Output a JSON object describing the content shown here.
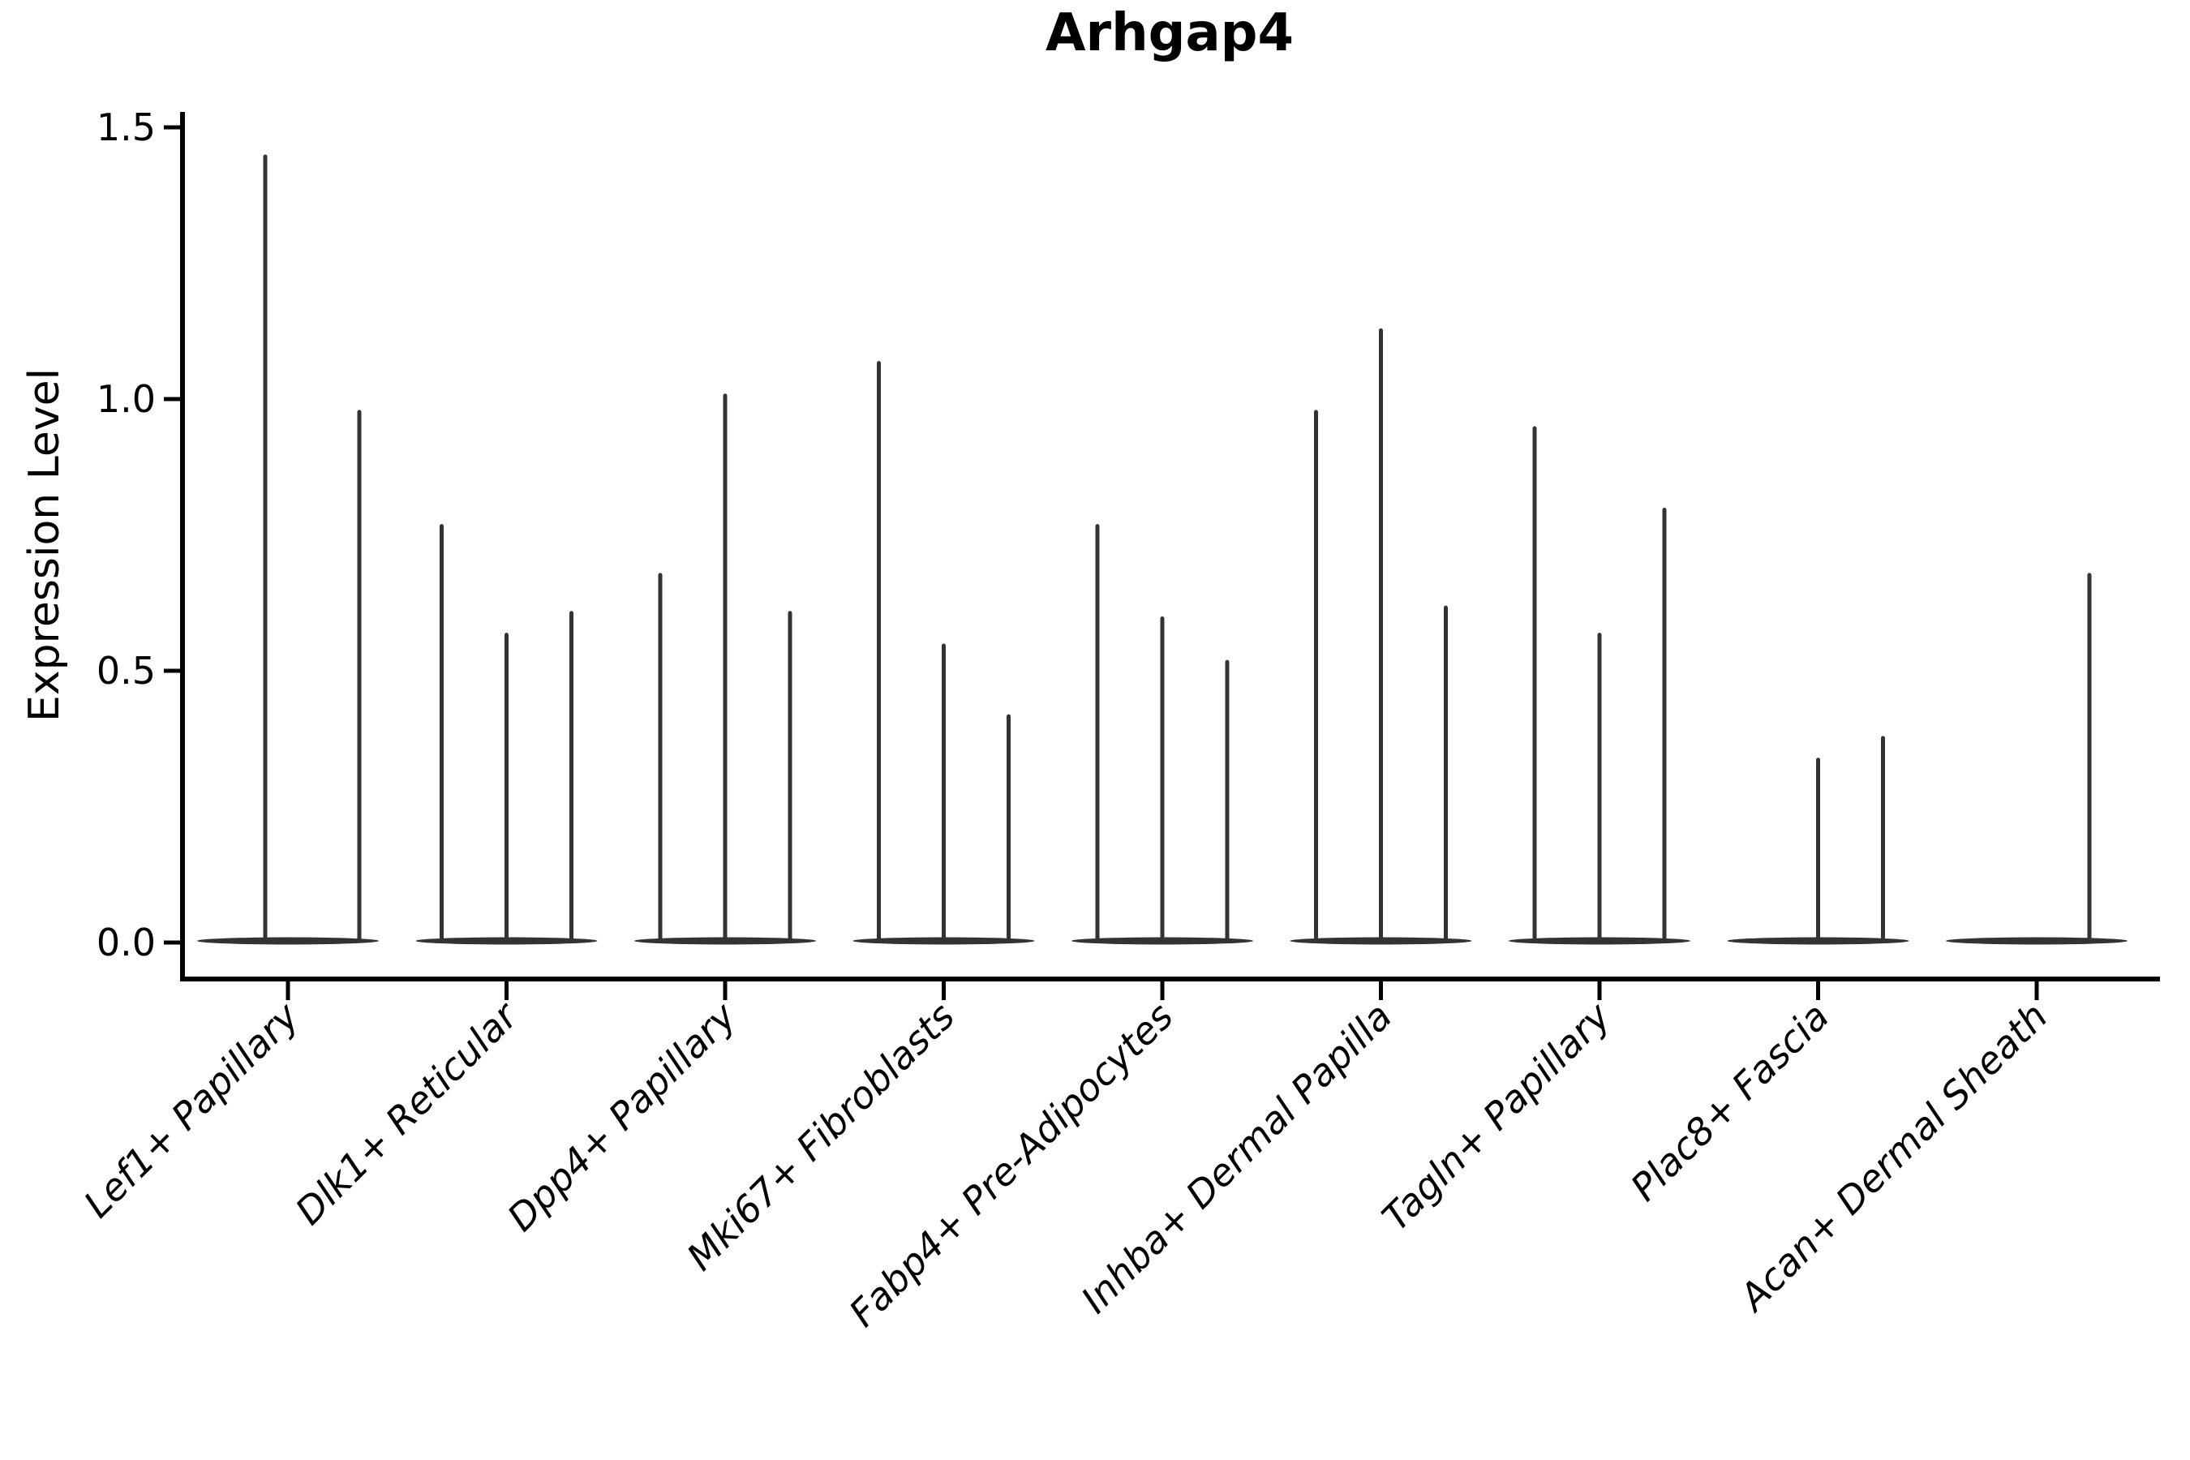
{
  "title": "Arhgap4",
  "axes": {
    "ylabel": "Expression Level",
    "xlabel": ""
  },
  "chart_data": {
    "type": "violin",
    "title": "Arhgap4",
    "ylabel": "Expression Level",
    "xlabel": "",
    "ylim": [
      -0.067,
      1.53
    ],
    "yticks": [
      0.0,
      0.5,
      1.0,
      1.5
    ],
    "grid": false,
    "legend": null,
    "categories": [
      "Lef1+ Papillary",
      "Dlk1+ Reticular",
      "Dpp4+ Papillary",
      "Mki67+ Fibroblasts",
      "Fabp4+ Pre-Adipocytes",
      "Inhba+ Dermal Papilla",
      "Tagln+ Papillary",
      "Plac8+ Fascia",
      "Acan+ Dermal Sheath"
    ],
    "groups": [
      {
        "category": "Lef1+ Papillary",
        "violins": [
          {
            "dx": -28,
            "max": 1.45
          },
          {
            "dx": 88,
            "max": 0.98
          }
        ]
      },
      {
        "category": "Dlk1+ Reticular",
        "violins": [
          {
            "dx": -80,
            "max": 0.77
          },
          {
            "dx": 0,
            "max": 0.57
          },
          {
            "dx": 80,
            "max": 0.61
          }
        ]
      },
      {
        "category": "Dpp4+ Papillary",
        "violins": [
          {
            "dx": -80,
            "max": 0.68
          },
          {
            "dx": 0,
            "max": 1.01
          },
          {
            "dx": 80,
            "max": 0.61
          }
        ]
      },
      {
        "category": "Mki67+ Fibroblasts",
        "violins": [
          {
            "dx": -80,
            "max": 1.07
          },
          {
            "dx": 0,
            "max": 0.55
          },
          {
            "dx": 80,
            "max": 0.42
          }
        ]
      },
      {
        "category": "Fabp4+ Pre-Adipocytes",
        "violins": [
          {
            "dx": -80,
            "max": 0.77
          },
          {
            "dx": 0,
            "max": 0.6
          },
          {
            "dx": 80,
            "max": 0.52
          }
        ]
      },
      {
        "category": "Inhba+ Dermal Papilla",
        "violins": [
          {
            "dx": -80,
            "max": 0.98
          },
          {
            "dx": 0,
            "max": 1.13
          },
          {
            "dx": 80,
            "max": 0.62
          }
        ]
      },
      {
        "category": "Tagln+ Papillary",
        "violins": [
          {
            "dx": -80,
            "max": 0.95
          },
          {
            "dx": 0,
            "max": 0.57
          },
          {
            "dx": 80,
            "max": 0.8
          }
        ]
      },
      {
        "category": "Plac8+ Fascia",
        "violins": [
          {
            "dx": 0,
            "max": 0.34
          },
          {
            "dx": 80,
            "max": 0.38
          }
        ]
      },
      {
        "category": "Acan+ Dermal Sheath",
        "violins": [
          {
            "dx": 65,
            "max": 0.68
          }
        ]
      }
    ],
    "colors": {
      "violin": "#333333",
      "axis": "#000000",
      "text": "#000000",
      "background": "#ffffff"
    }
  }
}
